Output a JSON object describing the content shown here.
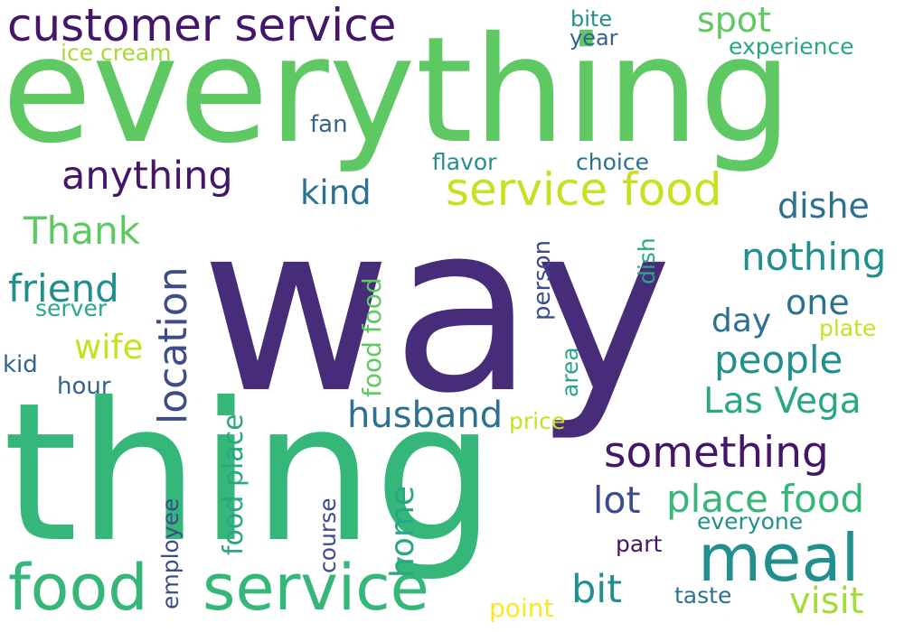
{
  "colors": {
    "background": "#ffffff",
    "dark_purple": "#472c7a",
    "deep_purple": "#44166a",
    "blue_violet": "#3e4c8a",
    "slate_blue": "#33638d",
    "teal_blue": "#2c728e",
    "teal": "#21908d",
    "sea_green": "#29a785",
    "green": "#35b779",
    "light_green": "#5ec962",
    "lime": "#a5db36",
    "yellow_green": "#c8e020",
    "yellow": "#fde725"
  },
  "words": [
    {
      "text": "way",
      "color": "#472c7a"
    },
    {
      "text": "everything",
      "color": "#5ec962"
    },
    {
      "text": "thing",
      "color": "#35b779"
    },
    {
      "text": "customer service",
      "color": "#44166a"
    },
    {
      "text": "service food",
      "color": "#c8e020"
    },
    {
      "text": "food",
      "color": "#35b779"
    },
    {
      "text": "service",
      "color": "#35b779"
    },
    {
      "text": "meal",
      "color": "#21908d"
    },
    {
      "text": "something",
      "color": "#44166a"
    },
    {
      "text": "place food",
      "color": "#35b779"
    },
    {
      "text": "anything",
      "color": "#44166a"
    },
    {
      "text": "nothing",
      "color": "#21908d"
    },
    {
      "text": "people",
      "color": "#21908d"
    },
    {
      "text": "husband",
      "color": "#2c728e"
    },
    {
      "text": "Las Vega",
      "color": "#29a785"
    },
    {
      "text": "location",
      "color": "#3e4c8a"
    },
    {
      "text": "Thank",
      "color": "#5ec962"
    },
    {
      "text": "friend",
      "color": "#21908d"
    },
    {
      "text": "spot",
      "color": "#5ec962"
    },
    {
      "text": "dishe",
      "color": "#2c728e"
    },
    {
      "text": "kind",
      "color": "#2c728e"
    },
    {
      "text": "one",
      "color": "#2c728e"
    },
    {
      "text": "day",
      "color": "#2c728e"
    },
    {
      "text": "wife",
      "color": "#c8e020"
    },
    {
      "text": "lot",
      "color": "#3e4c8a"
    },
    {
      "text": "bit",
      "color": "#21908d"
    },
    {
      "text": "visit",
      "color": "#a5db36"
    },
    {
      "text": "home",
      "color": "#29a785"
    },
    {
      "text": "food place",
      "color": "#29a785"
    },
    {
      "text": "food food",
      "color": "#5ec962"
    },
    {
      "text": "experience",
      "color": "#29a785"
    },
    {
      "text": "ice cream",
      "color": "#a5db36"
    },
    {
      "text": "bite",
      "color": "#21908d"
    },
    {
      "text": "year",
      "color": "#33638d"
    },
    {
      "text": "fan",
      "color": "#33638d"
    },
    {
      "text": "flavor",
      "color": "#21908d"
    },
    {
      "text": "choice",
      "color": "#2c728e"
    },
    {
      "text": "server",
      "color": "#29a785"
    },
    {
      "text": "kid",
      "color": "#33638d"
    },
    {
      "text": "hour",
      "color": "#33638d"
    },
    {
      "text": "plate",
      "color": "#c8e020"
    },
    {
      "text": "price",
      "color": "#c8e020"
    },
    {
      "text": "person",
      "color": "#3e4c8a"
    },
    {
      "text": "dish",
      "color": "#29a785"
    },
    {
      "text": "area",
      "color": "#29a785"
    },
    {
      "text": "employee",
      "color": "#3e4c8a"
    },
    {
      "text": "course",
      "color": "#3e4c8a"
    },
    {
      "text": "everyone",
      "color": "#21908d"
    },
    {
      "text": "part",
      "color": "#44166a"
    },
    {
      "text": "taste",
      "color": "#2c728e"
    },
    {
      "text": "point",
      "color": "#fde725"
    }
  ]
}
